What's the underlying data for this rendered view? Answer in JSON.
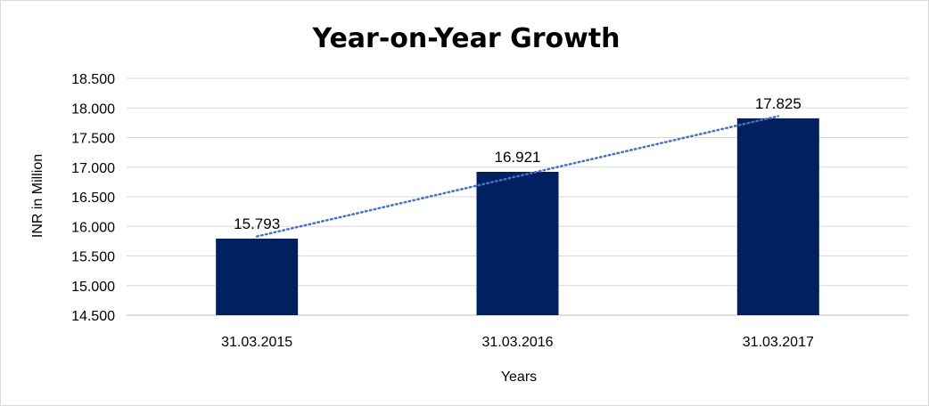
{
  "chart_data": {
    "type": "bar",
    "title": "Year-on-Year Growth",
    "xlabel": "Years",
    "ylabel": "INR in Million",
    "categories": [
      "31.03.2015",
      "31.03.2016",
      "31.03.2017"
    ],
    "values": [
      15.793,
      16.921,
      17.825
    ],
    "data_labels": [
      "15.793",
      "16.921",
      "17.825"
    ],
    "ylim": [
      14.5,
      18.5
    ],
    "yticks": [
      14.5,
      15.0,
      15.5,
      16.0,
      16.5,
      17.0,
      17.5,
      18.0,
      18.5
    ],
    "ytick_labels": [
      "14.500",
      "15.000",
      "15.500",
      "16.000",
      "16.500",
      "17.000",
      "17.500",
      "18.000",
      "18.500"
    ],
    "grid": true,
    "legend": "none",
    "trendline": "linear",
    "colors": {
      "bar": "#002060",
      "trendline": "#4472c4",
      "grid": "#d9d9d9"
    }
  }
}
